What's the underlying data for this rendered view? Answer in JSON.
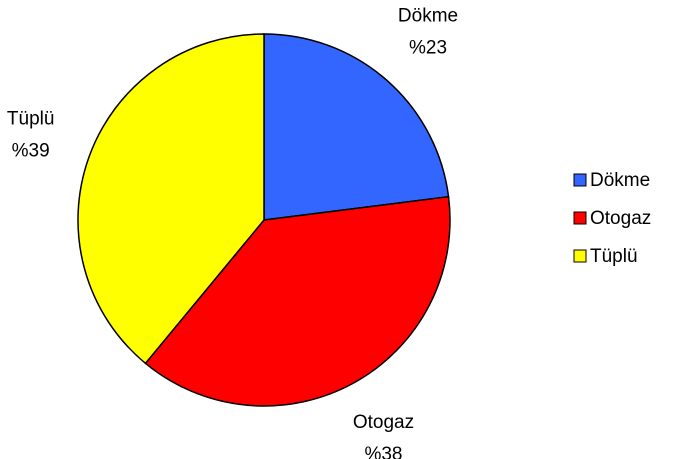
{
  "chart_data": {
    "type": "pie",
    "categories": [
      "Dökme",
      "Otogaz",
      "Tüplü"
    ],
    "values": [
      23,
      38,
      39
    ],
    "value_labels": [
      "%23",
      "%38",
      "%39"
    ],
    "colors": [
      "#3366ff",
      "#ff0000",
      "#ffff00"
    ],
    "legend": "right"
  }
}
